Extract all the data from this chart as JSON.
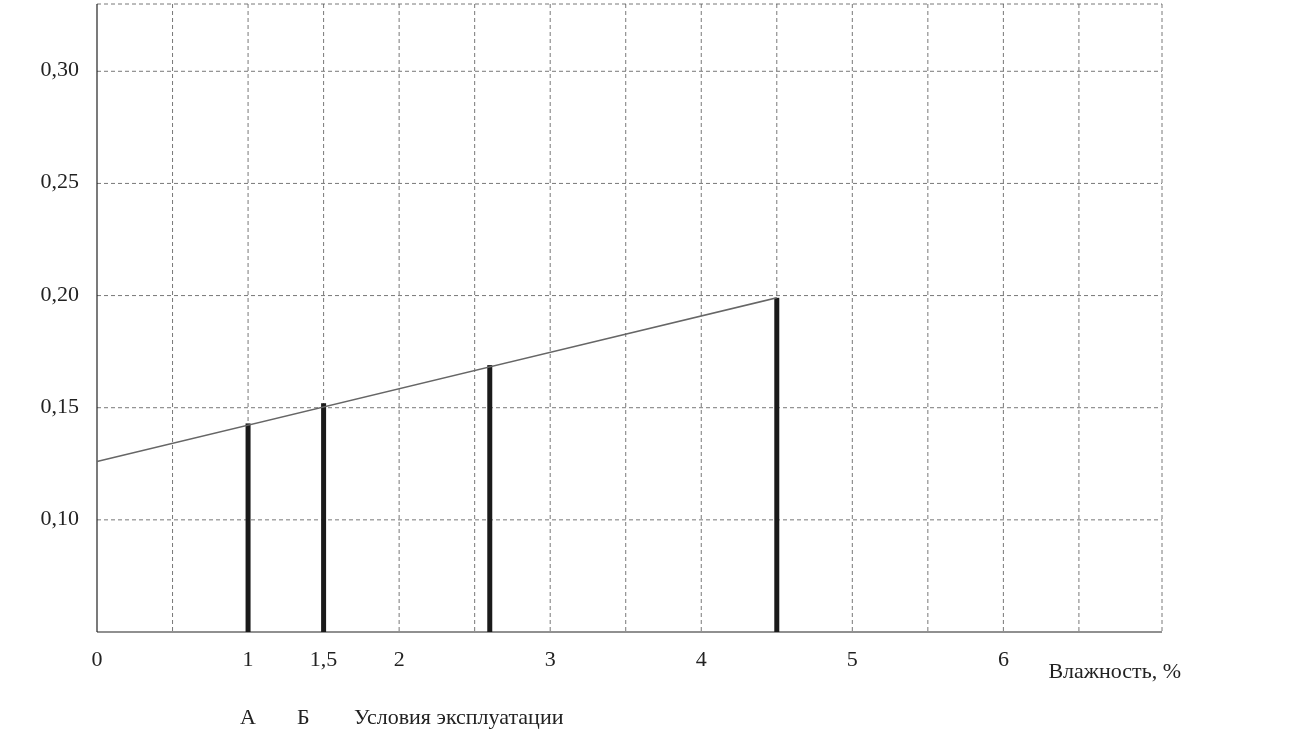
{
  "chart_data": {
    "type": "bar",
    "xlabel": "Влажность, %",
    "xlim": [
      0,
      7.05
    ],
    "ylim": [
      0.05,
      0.33
    ],
    "xticks": [
      {
        "value": 0,
        "label": "0"
      },
      {
        "value": 0.5,
        "label": null
      },
      {
        "value": 1,
        "label": "1"
      },
      {
        "value": 1.5,
        "label": "1,5"
      },
      {
        "value": 2,
        "label": "2"
      },
      {
        "value": 2.5,
        "label": null
      },
      {
        "value": 3,
        "label": "3"
      },
      {
        "value": 3.5,
        "label": null
      },
      {
        "value": 4,
        "label": "4"
      },
      {
        "value": 4.5,
        "label": null
      },
      {
        "value": 5,
        "label": "5"
      },
      {
        "value": 5.5,
        "label": null
      },
      {
        "value": 6,
        "label": "6"
      },
      {
        "value": 6.5,
        "label": null
      }
    ],
    "yticks": [
      {
        "value": 0.1,
        "label": "0,10"
      },
      {
        "value": 0.15,
        "label": "0,15"
      },
      {
        "value": 0.2,
        "label": "0,20"
      },
      {
        "value": 0.25,
        "label": "0,25"
      },
      {
        "value": 0.3,
        "label": "0,30"
      }
    ],
    "grid": true,
    "series": [
      {
        "color": "#1a1a1a",
        "x": [
          1,
          1.5,
          2.6,
          4.5
        ],
        "base": [
          0.05,
          0.05,
          0.05,
          0.05
        ],
        "values": [
          0.093,
          0.102,
          0.119,
          0.149
        ]
      },
      {
        "type": "line",
        "color": "#666666",
        "x": [
          0,
          4.5
        ],
        "values": [
          0.126,
          0.199
        ]
      }
    ],
    "annotations": [
      "А",
      "Б",
      "Условия эксплуатации"
    ]
  }
}
